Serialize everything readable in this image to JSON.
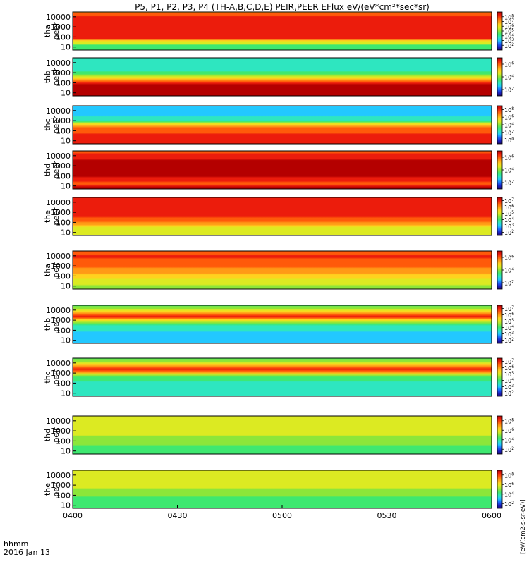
{
  "chart_data": {
    "type": "heatmap",
    "title": "P5, P1, P2, P3, P4 (TH-A,B,C,D,E) PEIR,PEER EFlux eV/(eV*cm²*sec*sr)",
    "x_label_line1": "hhmm",
    "x_label_line2": "2016 Jan 13",
    "x_ticks": [
      "0400",
      "0430",
      "0500",
      "0530",
      "0600"
    ],
    "x_range_minutes": [
      0,
      120
    ],
    "x_tick_minutes": [
      0,
      30,
      60,
      90,
      120
    ],
    "y_scale": "log",
    "y_range_eV": [
      5,
      30000
    ],
    "y_tick_values": [
      10,
      100,
      1000,
      10000
    ],
    "y_ticks_text": [
      "10",
      "100",
      "1000",
      "10000"
    ],
    "y_ticks_pow": [
      {
        "b": "10",
        "e": "1"
      },
      {
        "b": "10",
        "e": "2"
      },
      {
        "b": "10",
        "e": "3"
      },
      {
        "b": "10",
        "e": "4"
      }
    ],
    "colorbar_unit_label": "[eV/(cm2-s-sr-eV)]",
    "colorscale": [
      "#1b0a6e",
      "#1c23c8",
      "#1a6cff",
      "#22c8ff",
      "#2ee6c0",
      "#3ee870",
      "#8ce63a",
      "#dcea22",
      "#ffd21e",
      "#ff9a16",
      "#ff5a0a",
      "#ec1c0c",
      "#b40000"
    ],
    "series": [
      {
        "probe": "thA",
        "label1": "tha",
        "label2": "peer",
        "cb_ticks": [
          {
            "b": "10",
            "e": "8"
          },
          {
            "b": "10",
            "e": "7"
          },
          {
            "b": "10",
            "e": "6"
          },
          {
            "b": "10",
            "e": "5"
          },
          {
            "b": "10",
            "e": "4"
          },
          {
            "b": "10",
            "e": "3"
          },
          {
            "b": "10",
            "e": "2"
          }
        ],
        "cb_log_range": [
          1,
          9
        ],
        "profile_log_flux": [
          [
            1.2,
            4.0
          ],
          [
            1.4,
            6.2
          ],
          [
            1.5,
            5.2
          ],
          [
            1.8,
            8.0
          ],
          [
            2.5,
            8.0
          ],
          [
            3.0,
            8.5
          ],
          [
            4.0,
            8.3
          ],
          [
            4.5,
            7.0
          ]
        ]
      },
      {
        "probe": "thB",
        "label1": "thb",
        "label2": "peer",
        "cb_ticks": [
          {
            "b": "10",
            "e": "6"
          },
          {
            "b": "10",
            "e": "4"
          },
          {
            "b": "10",
            "e": "2"
          }
        ],
        "cb_log_range": [
          1,
          7
        ],
        "profile_log_flux": [
          [
            1.0,
            7.0
          ],
          [
            1.5,
            7.0
          ],
          [
            2.0,
            6.6
          ],
          [
            2.3,
            5.6
          ],
          [
            2.6,
            4.2
          ],
          [
            3.0,
            3.3
          ],
          [
            3.5,
            3.0
          ],
          [
            4.5,
            2.8
          ]
        ]
      },
      {
        "probe": "thC",
        "label1": "thc",
        "label2": "peer",
        "cb_ticks": [
          {
            "b": "10",
            "e": "8"
          },
          {
            "b": "10",
            "e": "6"
          },
          {
            "b": "10",
            "e": "4"
          },
          {
            "b": "10",
            "e": "2"
          },
          {
            "b": "10",
            "e": "0"
          }
        ],
        "cb_log_range": [
          -1,
          9
        ],
        "profile_log_flux": [
          [
            1.0,
            8.0
          ],
          [
            1.5,
            7.9
          ],
          [
            2.2,
            7.5
          ],
          [
            2.5,
            6.2
          ],
          [
            2.8,
            4.2
          ],
          [
            3.0,
            2.6
          ],
          [
            3.5,
            1.8
          ],
          [
            4.5,
            1.6
          ]
        ]
      },
      {
        "probe": "thD",
        "label1": "thd",
        "label2": "peer",
        "cb_ticks": [
          {
            "b": "10",
            "e": "6"
          },
          {
            "b": "10",
            "e": "4"
          },
          {
            "b": "10",
            "e": "2"
          }
        ],
        "cb_log_range": [
          1,
          7
        ],
        "profile_log_flux": [
          [
            1.0,
            6.8
          ],
          [
            1.2,
            6.0
          ],
          [
            1.5,
            6.3
          ],
          [
            2.0,
            6.9
          ],
          [
            3.0,
            7.0
          ],
          [
            4.0,
            6.6
          ],
          [
            4.5,
            5.9
          ]
        ]
      },
      {
        "probe": "thE",
        "label1": "the",
        "label2": "peer",
        "cb_ticks": [
          {
            "b": "10",
            "e": "7"
          },
          {
            "b": "10",
            "e": "6"
          },
          {
            "b": "10",
            "e": "5"
          },
          {
            "b": "10",
            "e": "4"
          },
          {
            "b": "10",
            "e": "3"
          },
          {
            "b": "10",
            "e": "2"
          }
        ],
        "cb_log_range": [
          1.5,
          7.5
        ],
        "profile_log_flux": [
          [
            1.0,
            4.8
          ],
          [
            1.3,
            5.0
          ],
          [
            1.6,
            5.3
          ],
          [
            2.0,
            6.2
          ],
          [
            2.6,
            6.9
          ],
          [
            3.2,
            7.2
          ],
          [
            4.0,
            7.0
          ],
          [
            4.5,
            6.8
          ]
        ]
      },
      {
        "probe": "thA",
        "label1": "tha",
        "label2": "peir",
        "cb_ticks": [
          {
            "b": "10",
            "e": "6"
          },
          {
            "b": "10",
            "e": "4"
          },
          {
            "b": "10",
            "e": "2"
          }
        ],
        "cb_log_range": [
          1,
          7
        ],
        "profile_log_flux": [
          [
            1.0,
            4.2
          ],
          [
            1.5,
            4.6
          ],
          [
            2.0,
            5.0
          ],
          [
            2.5,
            5.5
          ],
          [
            3.0,
            5.9
          ],
          [
            3.5,
            6.2
          ],
          [
            4.0,
            6.3
          ],
          [
            4.5,
            6.1
          ]
        ]
      },
      {
        "probe": "thB",
        "label1": "thb",
        "label2": "peir",
        "cb_ticks": [
          {
            "b": "10",
            "e": "7"
          },
          {
            "b": "10",
            "e": "6"
          },
          {
            "b": "10",
            "e": "5"
          },
          {
            "b": "10",
            "e": "4"
          },
          {
            "b": "10",
            "e": "3"
          },
          {
            "b": "10",
            "e": "2"
          }
        ],
        "cb_log_range": [
          1.5,
          7.5
        ],
        "profile_log_flux": [
          [
            1.0,
            3.0
          ],
          [
            1.5,
            3.1
          ],
          [
            2.0,
            3.3
          ],
          [
            2.6,
            3.8
          ],
          [
            3.0,
            5.5
          ],
          [
            3.4,
            7.0
          ],
          [
            3.7,
            6.0
          ],
          [
            4.1,
            4.6
          ],
          [
            4.5,
            4.0
          ]
        ]
      },
      {
        "probe": "thC",
        "label1": "thc",
        "label2": "peir",
        "cb_ticks": [
          {
            "b": "10",
            "e": "7"
          },
          {
            "b": "10",
            "e": "6"
          },
          {
            "b": "10",
            "e": "5"
          },
          {
            "b": "10",
            "e": "4"
          },
          {
            "b": "10",
            "e": "3"
          },
          {
            "b": "10",
            "e": "2"
          }
        ],
        "cb_log_range": [
          1.5,
          7.5
        ],
        "profile_log_flux": [
          [
            1.0,
            3.3
          ],
          [
            1.5,
            3.4
          ],
          [
            2.0,
            3.6
          ],
          [
            2.6,
            4.0
          ],
          [
            3.0,
            5.6
          ],
          [
            3.3,
            7.1
          ],
          [
            3.7,
            6.1
          ],
          [
            4.1,
            4.7
          ],
          [
            4.5,
            4.1
          ]
        ]
      },
      {
        "probe": "thD",
        "label1": "thd",
        "label2": "peir",
        "cb_ticks": [
          {
            "b": "10",
            "e": "8"
          },
          {
            "b": "10",
            "e": "6"
          },
          {
            "b": "10",
            "e": "4"
          },
          {
            "b": "10",
            "e": "2"
          }
        ],
        "cb_log_range": [
          1,
          9
        ],
        "profile_log_flux": [
          [
            1.0,
            4.2
          ],
          [
            1.5,
            4.6
          ],
          [
            2.0,
            4.9
          ],
          [
            2.5,
            5.3
          ],
          [
            3.0,
            5.6
          ],
          [
            3.5,
            5.9
          ],
          [
            4.0,
            6.0
          ],
          [
            4.5,
            5.8
          ]
        ]
      },
      {
        "probe": "thE",
        "label1": "the",
        "label2": "peir",
        "cb_ticks": [
          {
            "b": "10",
            "e": "8"
          },
          {
            "b": "10",
            "e": "6"
          },
          {
            "b": "10",
            "e": "4"
          },
          {
            "b": "10",
            "e": "2"
          }
        ],
        "cb_log_range": [
          1,
          9
        ],
        "profile_log_flux": [
          [
            1.0,
            4.0
          ],
          [
            1.5,
            4.4
          ],
          [
            2.0,
            4.8
          ],
          [
            2.5,
            5.2
          ],
          [
            3.0,
            5.5
          ],
          [
            3.5,
            5.8
          ],
          [
            4.0,
            5.9
          ],
          [
            4.5,
            5.7
          ]
        ]
      }
    ]
  }
}
